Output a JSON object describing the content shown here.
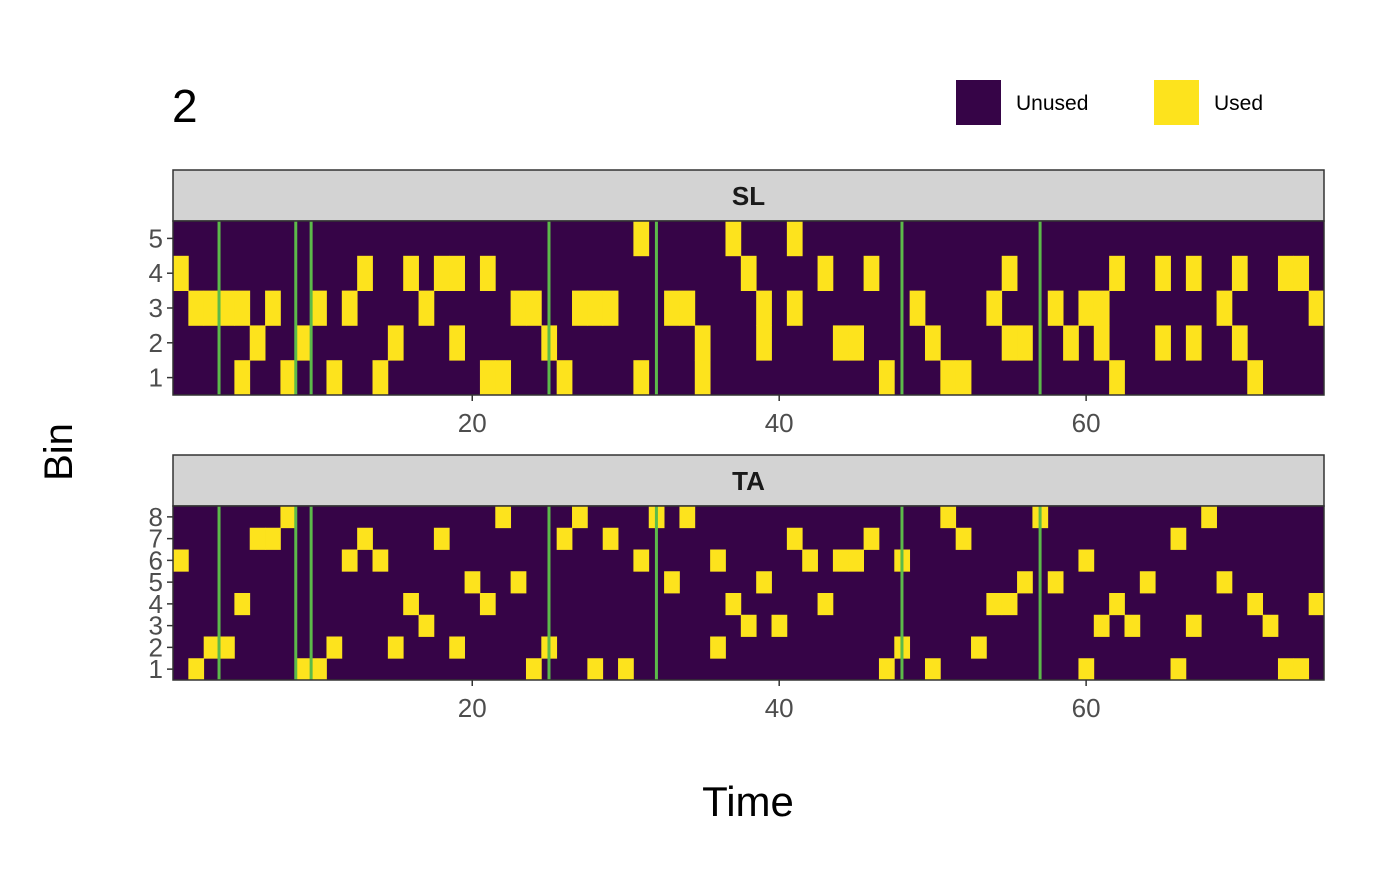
{
  "chart_data": {
    "type": "heatmap",
    "title": "2",
    "xlabel": "Time",
    "ylabel": "Bin",
    "xlim": [
      1,
      75
    ],
    "xticks": [
      20,
      40,
      60
    ],
    "legend": {
      "placement": "top-right",
      "entries": [
        {
          "label": "Unused",
          "value": 0,
          "color": "#360447"
        },
        {
          "label": "Used",
          "value": 1,
          "color": "#fde31d"
        }
      ]
    },
    "colors": {
      "unused": "#360447",
      "used": "#fde31d",
      "event_line": "#5cba4a",
      "strip_fill": "#d3d3d3",
      "panel_border": "#333333"
    },
    "event_times": [
      3.5,
      8.5,
      9.5,
      25,
      32,
      48,
      57
    ],
    "panels": [
      {
        "name": "SL",
        "bins": 5,
        "used": [
          {
            "bin": 5,
            "times": [
              31,
              37,
              41
            ]
          },
          {
            "bin": 4,
            "times": [
              1,
              13,
              16,
              18,
              19,
              21,
              38,
              43,
              46,
              55,
              62,
              65,
              67,
              70,
              73,
              74
            ]
          },
          {
            "bin": 3,
            "times": [
              2,
              3,
              4,
              5,
              7,
              10,
              12,
              17,
              23,
              24,
              27,
              28,
              29,
              33,
              34,
              39,
              41,
              49,
              54,
              58,
              60,
              61,
              69,
              75
            ]
          },
          {
            "bin": 2,
            "times": [
              6,
              9,
              15,
              19,
              25,
              35,
              39,
              44,
              45,
              50,
              55,
              56,
              59,
              61,
              65,
              67,
              70
            ]
          },
          {
            "bin": 1,
            "times": [
              5,
              8,
              11,
              14,
              21,
              22,
              26,
              31,
              35,
              47,
              51,
              52,
              62,
              71
            ]
          }
        ]
      },
      {
        "name": "TA",
        "bins": 8,
        "used": [
          {
            "bin": 8,
            "times": [
              8,
              22,
              27,
              32,
              34,
              51,
              57,
              68
            ]
          },
          {
            "bin": 7,
            "times": [
              6,
              7,
              13,
              18,
              26,
              29,
              41,
              46,
              52,
              66
            ]
          },
          {
            "bin": 6,
            "times": [
              1,
              12,
              14,
              31,
              36,
              42,
              44,
              45,
              48,
              60
            ]
          },
          {
            "bin": 5,
            "times": [
              20,
              23,
              33,
              39,
              56,
              58,
              64,
              69
            ]
          },
          {
            "bin": 4,
            "times": [
              5,
              16,
              21,
              37,
              43,
              54,
              55,
              62,
              71,
              75
            ]
          },
          {
            "bin": 3,
            "times": [
              17,
              38,
              40,
              61,
              63,
              67,
              72
            ]
          },
          {
            "bin": 2,
            "times": [
              3,
              4,
              11,
              15,
              19,
              25,
              36,
              48,
              53
            ]
          },
          {
            "bin": 1,
            "times": [
              2,
              9,
              10,
              24,
              28,
              30,
              47,
              50,
              60,
              66,
              73,
              74
            ]
          }
        ]
      }
    ]
  }
}
